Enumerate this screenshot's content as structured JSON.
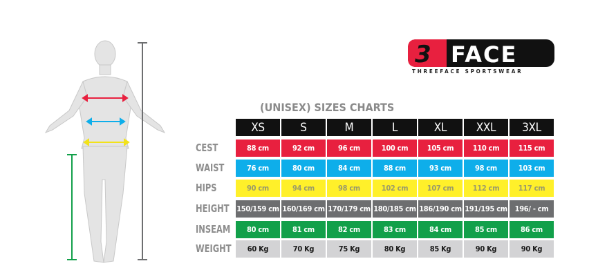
{
  "logo": {
    "brand": "3FACE",
    "tagline": "THREEFACE SPORTSWEAR"
  },
  "title": "(UNISEX) SIZES CHARTS",
  "sizes": [
    "XS",
    "S",
    "M",
    "L",
    "XL",
    "XXL",
    "3XL"
  ],
  "rows": [
    {
      "label": "CEST",
      "color": "#e8203f",
      "text_color": "#ffffff",
      "values": [
        "88 cm",
        "92 cm",
        "96 cm",
        "100 cm",
        "105 cm",
        "110 cm",
        "115 cm"
      ]
    },
    {
      "label": "WAIST",
      "color": "#0eaeea",
      "text_color": "#ffffff",
      "values": [
        "76 cm",
        "80 cm",
        "84 cm",
        "88 cm",
        "93 cm",
        "98 cm",
        "103 cm"
      ]
    },
    {
      "label": "HIPS",
      "color": "#fff02a",
      "text_color": "#9a9a6a",
      "values": [
        "90 cm",
        "94 cm",
        "98 cm",
        "102 cm",
        "107 cm",
        "112 cm",
        "117 cm"
      ]
    },
    {
      "label": "HEIGHT",
      "color": "#6d6e70",
      "text_color": "#ffffff",
      "values": [
        "150/159 cm",
        "160/169 cm",
        "170/179 cm",
        "180/185 cm",
        "186/190 cm",
        "191/195 cm",
        "196/ - cm"
      ]
    },
    {
      "label": "INSEAM",
      "color": "#12a04a",
      "text_color": "#ffffff",
      "values": [
        "80 cm",
        "81 cm",
        "82 cm",
        "83 cm",
        "84 cm",
        "85 cm",
        "86 cm"
      ]
    },
    {
      "label": "WEIGHT",
      "color": "#d3d3d5",
      "text_color": "#1a1a1a",
      "values": [
        "60 Kg",
        "70 Kg",
        "75 Kg",
        "80 Kg",
        "85 Kg",
        "90 Kg",
        "90 Kg"
      ]
    }
  ]
}
